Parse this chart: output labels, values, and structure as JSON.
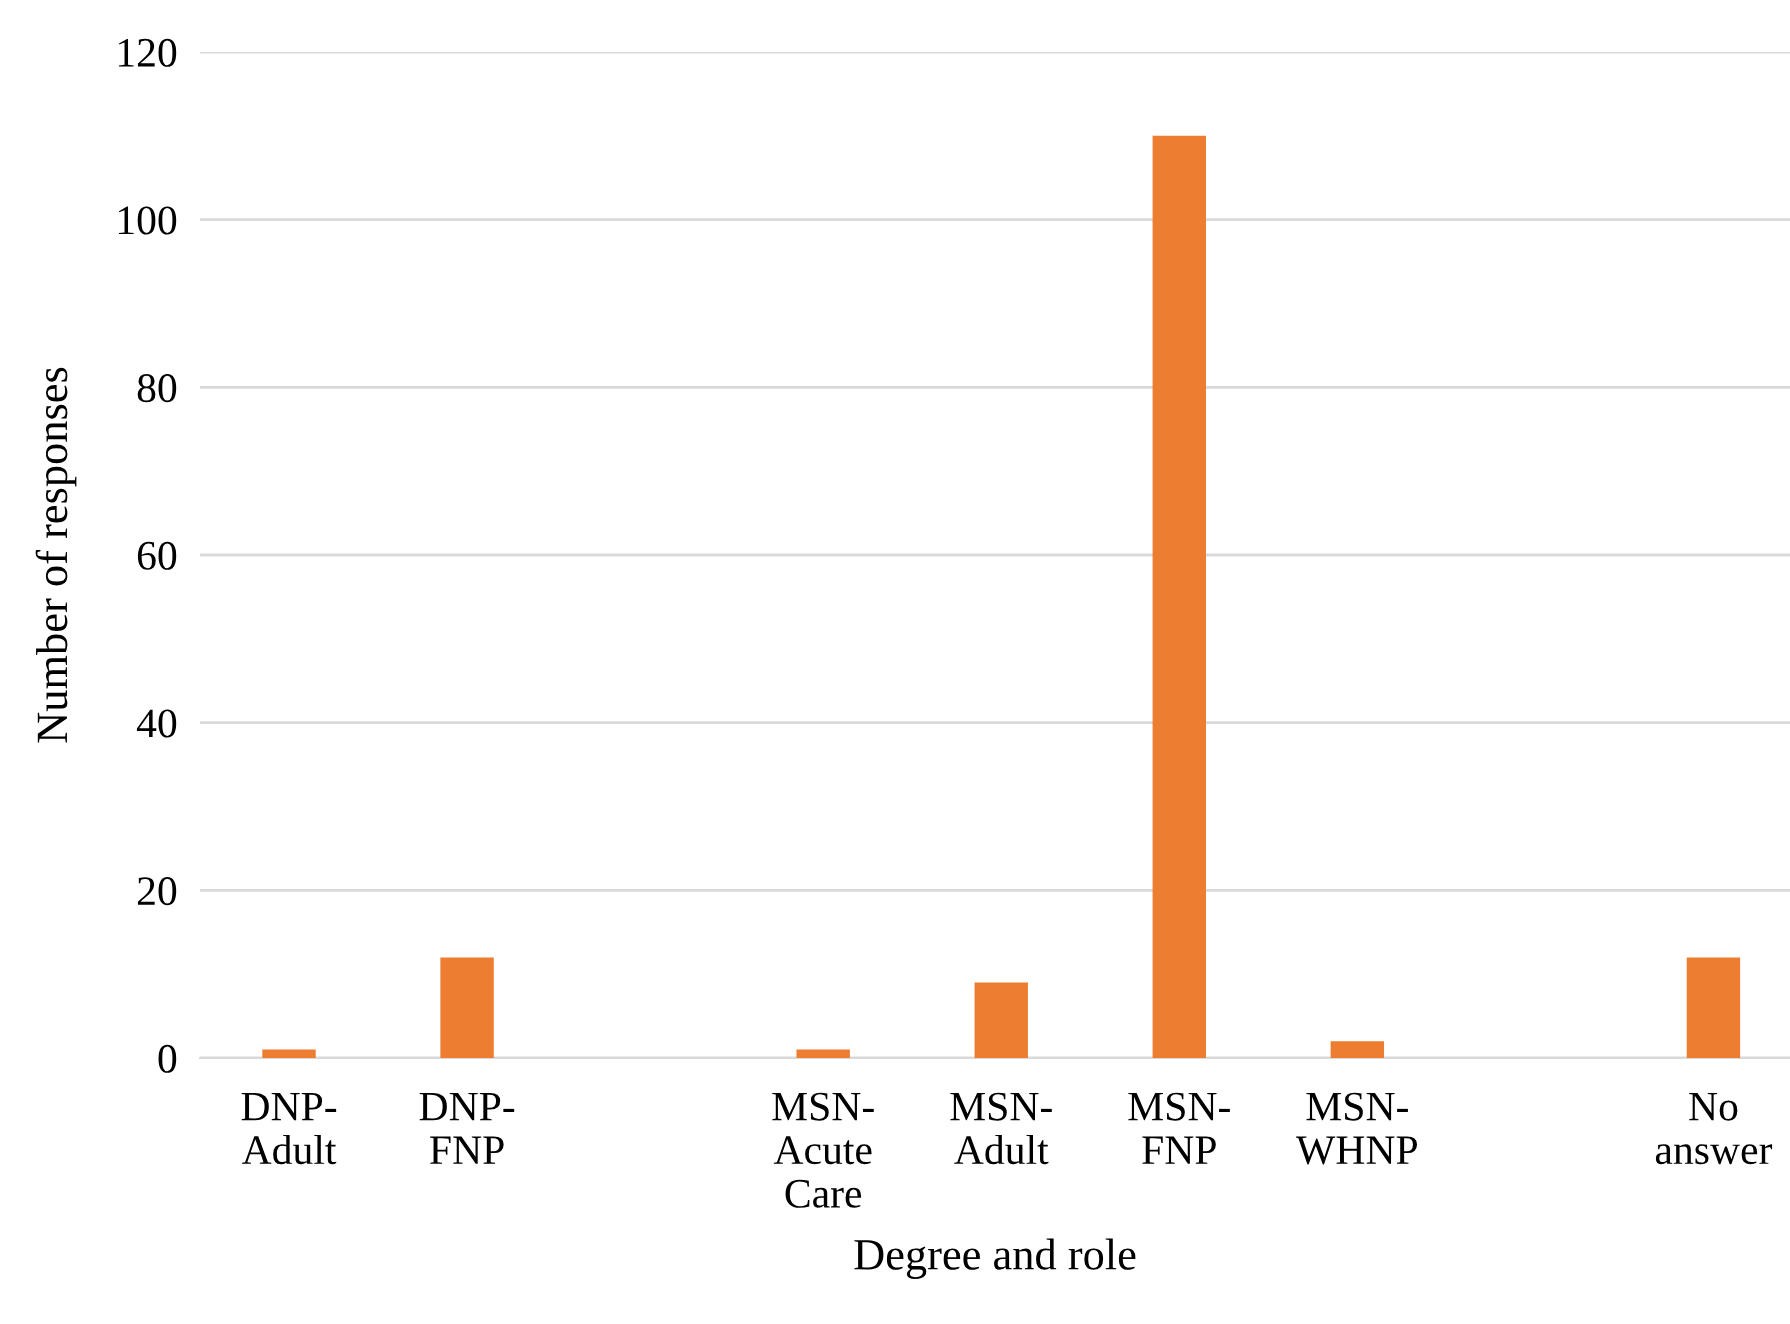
{
  "chart_data": {
    "type": "bar",
    "xlabel": "Degree and role",
    "ylabel": "Number of responses",
    "categories": [
      "DNP-\nAdult",
      "DNP-\nFNP",
      null,
      "MSN-\nAcute\nCare",
      "MSN-\nAdult",
      "MSN-\nFNP",
      "MSN-\nWHNP",
      null,
      "No\nanswer"
    ],
    "values": [
      1,
      12,
      null,
      1,
      9,
      110,
      2,
      null,
      12
    ],
    "color": "#ed7d31",
    "ylim": [
      0,
      120
    ],
    "yticks": [
      0,
      20,
      40,
      60,
      80,
      100,
      120
    ],
    "grid": "y",
    "legend": false
  }
}
